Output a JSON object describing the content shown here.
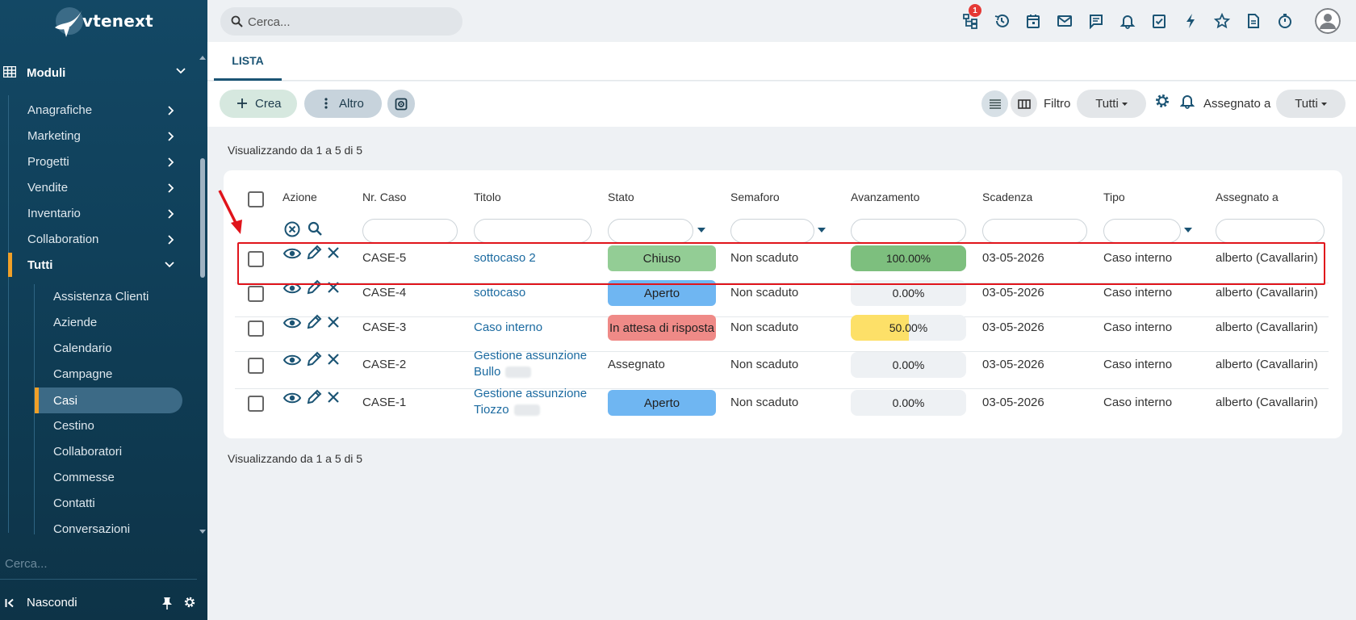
{
  "sidebar": {
    "logo_text": "vtenext",
    "modules_label": "Moduli",
    "items": [
      {
        "label": "Anagrafiche"
      },
      {
        "label": "Marketing"
      },
      {
        "label": "Progetti"
      },
      {
        "label": "Vendite"
      },
      {
        "label": "Inventario"
      },
      {
        "label": "Collaboration"
      },
      {
        "label": "Tutti"
      }
    ],
    "subitems": [
      {
        "label": "Assistenza Clienti"
      },
      {
        "label": "Aziende"
      },
      {
        "label": "Calendario"
      },
      {
        "label": "Campagne"
      },
      {
        "label": "Casi"
      },
      {
        "label": "Cestino"
      },
      {
        "label": "Collaboratori"
      },
      {
        "label": "Commesse"
      },
      {
        "label": "Contatti"
      },
      {
        "label": "Conversazioni"
      }
    ],
    "search_placeholder": "Cerca...",
    "hide_label": "Nascondi"
  },
  "topbar": {
    "search_placeholder": "Cerca...",
    "notification_badge": "1",
    "icons": [
      "processes-icon",
      "history-icon",
      "calendar-icon",
      "mail-icon",
      "chat-icon",
      "bell-icon",
      "tasks-icon",
      "flash-icon",
      "star-icon",
      "document-icon",
      "timer-icon"
    ]
  },
  "tabs": {
    "list_label": "LISTA"
  },
  "toolbar": {
    "create_label": "Crea",
    "more_label": "Altro",
    "filter_label": "Filtro",
    "filter_value": "Tutti",
    "assigned_label": "Assegnato a",
    "assigned_value": "Tutti"
  },
  "listing": {
    "showing_top": "Visualizzando da 1 a 5 di 5",
    "showing_bottom": "Visualizzando da 1 a 5 di 5",
    "columns": {
      "action": "Azione",
      "case_no": "Nr. Caso",
      "title": "Titolo",
      "status": "Stato",
      "semaphore": "Semaforo",
      "progress": "Avanzamento",
      "due": "Scadenza",
      "type": "Tipo",
      "assigned": "Assegnato a"
    },
    "rows": [
      {
        "case_no": "CASE-5",
        "title": "sottocaso 2",
        "title2": "",
        "status": "Chiuso",
        "status_color": "#93cd95",
        "semaphore": "Non scaduto",
        "progress": "100.00%",
        "progress_value": 1.0,
        "progress_color": "#7dbf7e",
        "due": "03-05-2026",
        "type": "Caso interno",
        "assigned": "alberto (Cavallarin)"
      },
      {
        "case_no": "CASE-4",
        "title": "sottocaso",
        "title2": "",
        "status": "Aperto",
        "status_color": "#6fb6f2",
        "semaphore": "Non scaduto",
        "progress": "0.00%",
        "progress_value": 0.0,
        "progress_color": "#7dbf7e",
        "due": "03-05-2026",
        "type": "Caso interno",
        "assigned": "alberto (Cavallarin)"
      },
      {
        "case_no": "CASE-3",
        "title": "Caso interno",
        "title2": "",
        "status": "In attesa di risposta",
        "status_color": "#ef8a87",
        "semaphore": "Non scaduto",
        "progress": "50.00%",
        "progress_value": 0.5,
        "progress_color": "#fde068",
        "due": "03-05-2026",
        "type": "Caso interno",
        "assigned": "alberto (Cavallarin)"
      },
      {
        "case_no": "CASE-2",
        "title": "Gestione assunzione",
        "title2": "Bullo",
        "status": "Assegnato",
        "status_color": "",
        "semaphore": "Non scaduto",
        "progress": "0.00%",
        "progress_value": 0.0,
        "progress_color": "#7dbf7e",
        "due": "03-05-2026",
        "type": "Caso interno",
        "assigned": "alberto (Cavallarin)"
      },
      {
        "case_no": "CASE-1",
        "title": "Gestione assunzione",
        "title2": "Tiozzo",
        "status": "Aperto",
        "status_color": "#6fb6f2",
        "semaphore": "Non scaduto",
        "progress": "0.00%",
        "progress_value": 0.0,
        "progress_color": "#7dbf7e",
        "due": "03-05-2026",
        "type": "Caso interno",
        "assigned": "alberto (Cavallarin)"
      }
    ]
  }
}
